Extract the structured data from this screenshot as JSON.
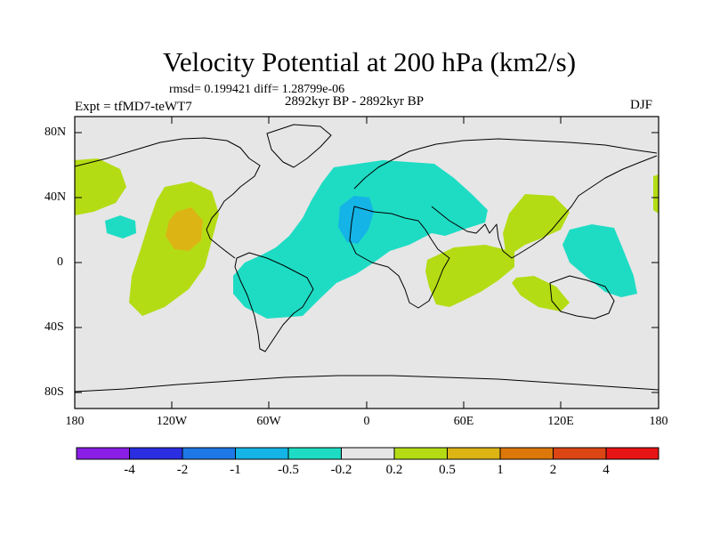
{
  "title": "Velocity Potential at 200 hPa (km2/s)",
  "stats": "rmsd= 0.199421 diff= 1.28799e-06",
  "expt": "Expt = tfMD7-teWT7",
  "period": "2892kyr BP - 2892kyr BP",
  "season": "DJF",
  "lat_ticks": [
    "80N",
    "40N",
    "0",
    "40S",
    "80S"
  ],
  "lon_ticks": [
    "180",
    "120W",
    "60W",
    "0",
    "60E",
    "120E",
    "180"
  ],
  "colorbar": {
    "labels": [
      "-4",
      "-2",
      "-1",
      "-0.5",
      "-0.2",
      "0.2",
      "0.5",
      "1",
      "2",
      "4"
    ],
    "colors": [
      "#8a1ee6",
      "#2a2ee0",
      "#1e78e6",
      "#14b4e6",
      "#1edcc4",
      "#e6e6e6",
      "#b4dc14",
      "#dcb414",
      "#dc780a",
      "#dc4614",
      "#e61414"
    ]
  }
}
